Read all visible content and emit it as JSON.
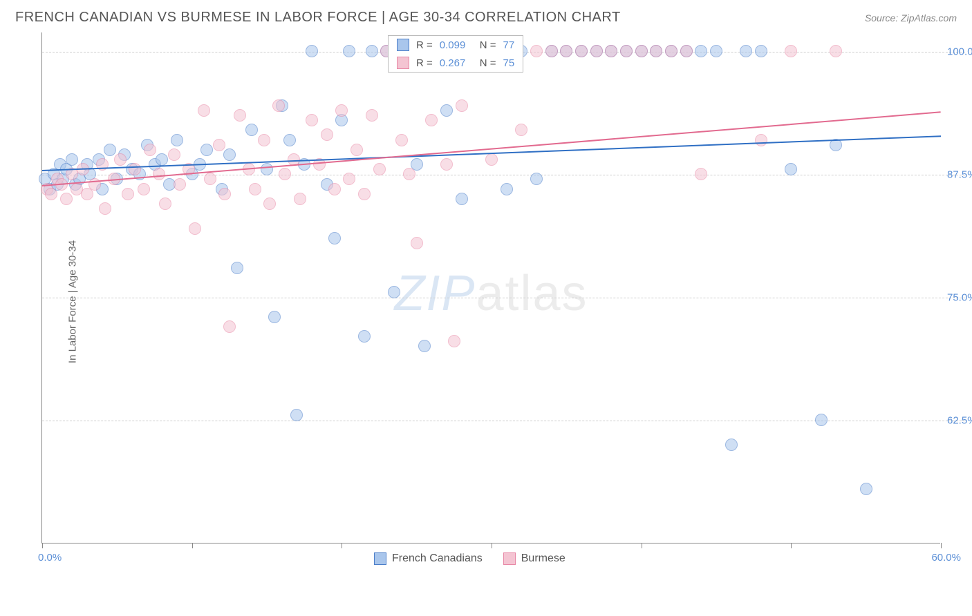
{
  "title": "FRENCH CANADIAN VS BURMESE IN LABOR FORCE | AGE 30-34 CORRELATION CHART",
  "source": "Source: ZipAtlas.com",
  "ylabel": "In Labor Force | Age 30-34",
  "watermark": {
    "zip": "ZIP",
    "atlas": "atlas"
  },
  "chart": {
    "type": "scatter",
    "xlim": [
      0,
      60
    ],
    "ylim": [
      50,
      102
    ],
    "xticks": [
      0,
      10,
      20,
      30,
      40,
      50,
      60
    ],
    "ygrid": [
      62.5,
      75.0,
      87.5,
      100.0
    ],
    "ylabels": [
      "62.5%",
      "75.0%",
      "87.5%",
      "100.0%"
    ],
    "xlim_labels": [
      "0.0%",
      "60.0%"
    ],
    "background_color": "#ffffff",
    "grid_color": "#cccccc",
    "axis_color": "#888888",
    "point_radius": 9,
    "point_opacity": 0.55,
    "series": [
      {
        "name": "French Canadians",
        "fill": "#a9c6ec",
        "stroke": "#4b7ec9",
        "trend_color": "#2f6fc4",
        "trend": {
          "x0": 0,
          "y0": 88.0,
          "x1": 60,
          "y1": 91.5
        },
        "R": "0.099",
        "N": "77",
        "points": [
          [
            0.2,
            87.0
          ],
          [
            0.5,
            86.0
          ],
          [
            0.8,
            87.5
          ],
          [
            1.0,
            86.5
          ],
          [
            1.2,
            88.5
          ],
          [
            1.4,
            87.0
          ],
          [
            1.6,
            88.0
          ],
          [
            2.0,
            89.0
          ],
          [
            2.2,
            86.5
          ],
          [
            2.5,
            87.0
          ],
          [
            3.0,
            88.5
          ],
          [
            3.2,
            87.5
          ],
          [
            3.8,
            89.0
          ],
          [
            4.0,
            86.0
          ],
          [
            4.5,
            90.0
          ],
          [
            5.0,
            87.0
          ],
          [
            5.5,
            89.5
          ],
          [
            6.0,
            88.0
          ],
          [
            6.5,
            87.5
          ],
          [
            7.0,
            90.5
          ],
          [
            7.5,
            88.5
          ],
          [
            8.0,
            89.0
          ],
          [
            8.5,
            86.5
          ],
          [
            9.0,
            91.0
          ],
          [
            10.0,
            87.5
          ],
          [
            10.5,
            88.5
          ],
          [
            11.0,
            90.0
          ],
          [
            12.0,
            86.0
          ],
          [
            12.5,
            89.5
          ],
          [
            13.0,
            78.0
          ],
          [
            14.0,
            92.0
          ],
          [
            15.0,
            88.0
          ],
          [
            15.5,
            73.0
          ],
          [
            16.0,
            94.5
          ],
          [
            16.5,
            91.0
          ],
          [
            17.0,
            63.0
          ],
          [
            17.5,
            88.5
          ],
          [
            18.0,
            100.0
          ],
          [
            19.0,
            86.5
          ],
          [
            19.5,
            81.0
          ],
          [
            20.0,
            93.0
          ],
          [
            20.5,
            100.0
          ],
          [
            21.5,
            71.0
          ],
          [
            22.0,
            100.0
          ],
          [
            23.0,
            100.0
          ],
          [
            23.5,
            75.5
          ],
          [
            24.0,
            100.0
          ],
          [
            25.0,
            88.5
          ],
          [
            25.5,
            70.0
          ],
          [
            26.0,
            100.0
          ],
          [
            27.0,
            94.0
          ],
          [
            27.5,
            100.0
          ],
          [
            28.0,
            85.0
          ],
          [
            29.0,
            100.0
          ],
          [
            30.0,
            100.0
          ],
          [
            31.0,
            86.0
          ],
          [
            32.0,
            100.0
          ],
          [
            33.0,
            87.0
          ],
          [
            34.0,
            100.0
          ],
          [
            35.0,
            100.0
          ],
          [
            36.0,
            100.0
          ],
          [
            37.0,
            100.0
          ],
          [
            38.0,
            100.0
          ],
          [
            39.0,
            100.0
          ],
          [
            40.0,
            100.0
          ],
          [
            41.0,
            100.0
          ],
          [
            42.0,
            100.0
          ],
          [
            43.0,
            100.0
          ],
          [
            44.0,
            100.0
          ],
          [
            45.0,
            100.0
          ],
          [
            46.0,
            60.0
          ],
          [
            47.0,
            100.0
          ],
          [
            48.0,
            100.0
          ],
          [
            50.0,
            88.0
          ],
          [
            52.0,
            62.5
          ],
          [
            53.0,
            90.5
          ],
          [
            55.0,
            55.5
          ]
        ]
      },
      {
        "name": "Burmese",
        "fill": "#f4c4d2",
        "stroke": "#e888a6",
        "trend_color": "#e26a8f",
        "trend": {
          "x0": 0,
          "y0": 86.5,
          "x1": 60,
          "y1": 94.0
        },
        "R": "0.267",
        "N": "75",
        "points": [
          [
            0.3,
            86.0
          ],
          [
            0.6,
            85.5
          ],
          [
            1.0,
            87.0
          ],
          [
            1.3,
            86.5
          ],
          [
            1.6,
            85.0
          ],
          [
            2.0,
            87.5
          ],
          [
            2.3,
            86.0
          ],
          [
            2.7,
            88.0
          ],
          [
            3.0,
            85.5
          ],
          [
            3.5,
            86.5
          ],
          [
            4.0,
            88.5
          ],
          [
            4.2,
            84.0
          ],
          [
            4.8,
            87.0
          ],
          [
            5.2,
            89.0
          ],
          [
            5.7,
            85.5
          ],
          [
            6.2,
            88.0
          ],
          [
            6.8,
            86.0
          ],
          [
            7.2,
            90.0
          ],
          [
            7.8,
            87.5
          ],
          [
            8.2,
            84.5
          ],
          [
            8.8,
            89.5
          ],
          [
            9.2,
            86.5
          ],
          [
            9.8,
            88.0
          ],
          [
            10.2,
            82.0
          ],
          [
            10.8,
            94.0
          ],
          [
            11.2,
            87.0
          ],
          [
            11.8,
            90.5
          ],
          [
            12.2,
            85.5
          ],
          [
            12.5,
            72.0
          ],
          [
            13.2,
            93.5
          ],
          [
            13.8,
            88.0
          ],
          [
            14.2,
            86.0
          ],
          [
            14.8,
            91.0
          ],
          [
            15.2,
            84.5
          ],
          [
            15.8,
            94.5
          ],
          [
            16.2,
            87.5
          ],
          [
            16.8,
            89.0
          ],
          [
            17.2,
            85.0
          ],
          [
            18.0,
            93.0
          ],
          [
            18.5,
            88.5
          ],
          [
            19.0,
            91.5
          ],
          [
            19.5,
            86.0
          ],
          [
            20.0,
            94.0
          ],
          [
            20.5,
            87.0
          ],
          [
            21.0,
            90.0
          ],
          [
            21.5,
            85.5
          ],
          [
            22.0,
            93.5
          ],
          [
            22.5,
            88.0
          ],
          [
            23.0,
            100.0
          ],
          [
            24.0,
            91.0
          ],
          [
            24.5,
            87.5
          ],
          [
            25.0,
            80.5
          ],
          [
            26.0,
            93.0
          ],
          [
            27.0,
            88.5
          ],
          [
            27.5,
            70.5
          ],
          [
            28.0,
            94.5
          ],
          [
            29.0,
            100.0
          ],
          [
            30.0,
            89.0
          ],
          [
            31.0,
            100.0
          ],
          [
            32.0,
            92.0
          ],
          [
            33.0,
            100.0
          ],
          [
            34.0,
            100.0
          ],
          [
            35.0,
            100.0
          ],
          [
            36.0,
            100.0
          ],
          [
            37.0,
            100.0
          ],
          [
            38.0,
            100.0
          ],
          [
            39.0,
            100.0
          ],
          [
            40.0,
            100.0
          ],
          [
            41.0,
            100.0
          ],
          [
            42.0,
            100.0
          ],
          [
            43.0,
            100.0
          ],
          [
            44.0,
            87.5
          ],
          [
            48.0,
            91.0
          ],
          [
            50.0,
            100.0
          ],
          [
            53.0,
            100.0
          ]
        ]
      }
    ],
    "legend_top": {
      "R_label": "R =",
      "N_label": "N ="
    },
    "legend_bottom": [
      "French Canadians",
      "Burmese"
    ]
  }
}
